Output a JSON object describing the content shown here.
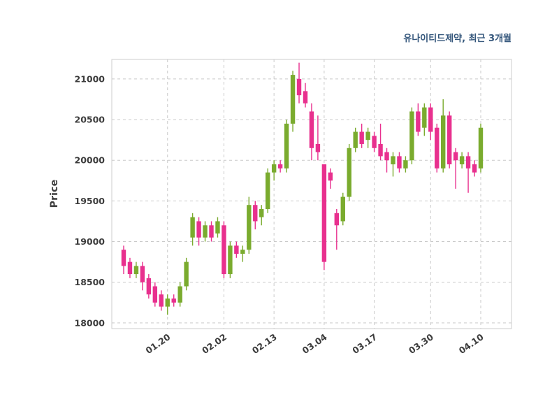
{
  "title": "유나이티드제약, 최근 3개월",
  "chart_data": {
    "type": "candlestick",
    "title": "유나이티드제약, 최근 3개월",
    "ylabel": "Price",
    "ylim": [
      17930,
      21240
    ],
    "yticks": [
      18000,
      18500,
      19000,
      19500,
      20000,
      20500,
      21000
    ],
    "xtick_labels": [
      "01.20",
      "02.02",
      "02.13",
      "03.04",
      "03.17",
      "03.30",
      "04.10"
    ],
    "xtick_indices": [
      7,
      16,
      24,
      32,
      40,
      49,
      57
    ],
    "grid": true,
    "legend": "none",
    "up_color": "#7aab2e",
    "down_color": "#e8308e",
    "candles": [
      [
        18900,
        18950,
        18600,
        18700
      ],
      [
        18750,
        18800,
        18550,
        18600
      ],
      [
        18600,
        18750,
        18550,
        18700
      ],
      [
        18700,
        18750,
        18400,
        18500
      ],
      [
        18550,
        18600,
        18300,
        18350
      ],
      [
        18450,
        18500,
        18200,
        18250
      ],
      [
        18350,
        18400,
        18150,
        18200
      ],
      [
        18200,
        18350,
        18100,
        18300
      ],
      [
        18300,
        18350,
        18200,
        18250
      ],
      [
        18250,
        18500,
        18200,
        18450
      ],
      [
        18450,
        18800,
        18400,
        18750
      ],
      [
        19050,
        19350,
        18950,
        19300
      ],
      [
        19250,
        19300,
        18950,
        19050
      ],
      [
        19050,
        19250,
        19000,
        19200
      ],
      [
        19200,
        19250,
        19000,
        19050
      ],
      [
        19100,
        19300,
        19050,
        19250
      ],
      [
        19200,
        19250,
        18550,
        18600
      ],
      [
        18600,
        19000,
        18550,
        18950
      ],
      [
        18950,
        19000,
        18800,
        18850
      ],
      [
        18850,
        18950,
        18750,
        18900
      ],
      [
        18900,
        19550,
        18850,
        19450
      ],
      [
        19450,
        19500,
        19150,
        19250
      ],
      [
        19300,
        19450,
        19200,
        19400
      ],
      [
        19400,
        19900,
        19350,
        19850
      ],
      [
        19850,
        20000,
        19750,
        19950
      ],
      [
        19950,
        20000,
        19850,
        19900
      ],
      [
        19900,
        20500,
        19850,
        20450
      ],
      [
        20450,
        21100,
        20350,
        21050
      ],
      [
        21000,
        21200,
        20700,
        20800
      ],
      [
        20850,
        20950,
        20650,
        20700
      ],
      [
        20600,
        20700,
        20000,
        20150
      ],
      [
        20200,
        20550,
        20000,
        20100
      ],
      [
        19950,
        19950,
        18650,
        18750
      ],
      [
        19850,
        19900,
        19650,
        19750
      ],
      [
        19350,
        19400,
        18900,
        19200
      ],
      [
        19250,
        19600,
        19200,
        19550
      ],
      [
        19550,
        20200,
        19500,
        20150
      ],
      [
        20150,
        20400,
        20100,
        20350
      ],
      [
        20350,
        20450,
        20150,
        20200
      ],
      [
        20250,
        20400,
        20150,
        20350
      ],
      [
        20300,
        20350,
        20100,
        20150
      ],
      [
        20200,
        20450,
        20000,
        20050
      ],
      [
        20100,
        20150,
        19850,
        20000
      ],
      [
        19950,
        20100,
        19800,
        20050
      ],
      [
        20050,
        20100,
        19850,
        19900
      ],
      [
        19900,
        20050,
        19850,
        20000
      ],
      [
        20000,
        20650,
        19950,
        20600
      ],
      [
        20600,
        20700,
        20300,
        20350
      ],
      [
        20400,
        20700,
        20300,
        20650
      ],
      [
        20650,
        20700,
        20250,
        20350
      ],
      [
        20400,
        20450,
        19850,
        19900
      ],
      [
        19900,
        20750,
        19850,
        20550
      ],
      [
        20550,
        20600,
        19900,
        19950
      ],
      [
        20100,
        20150,
        19650,
        20000
      ],
      [
        19950,
        20100,
        19900,
        20050
      ],
      [
        20050,
        20100,
        19600,
        19900
      ],
      [
        19950,
        20000,
        19800,
        19850
      ],
      [
        19900,
        20450,
        19850,
        20400
      ]
    ]
  }
}
